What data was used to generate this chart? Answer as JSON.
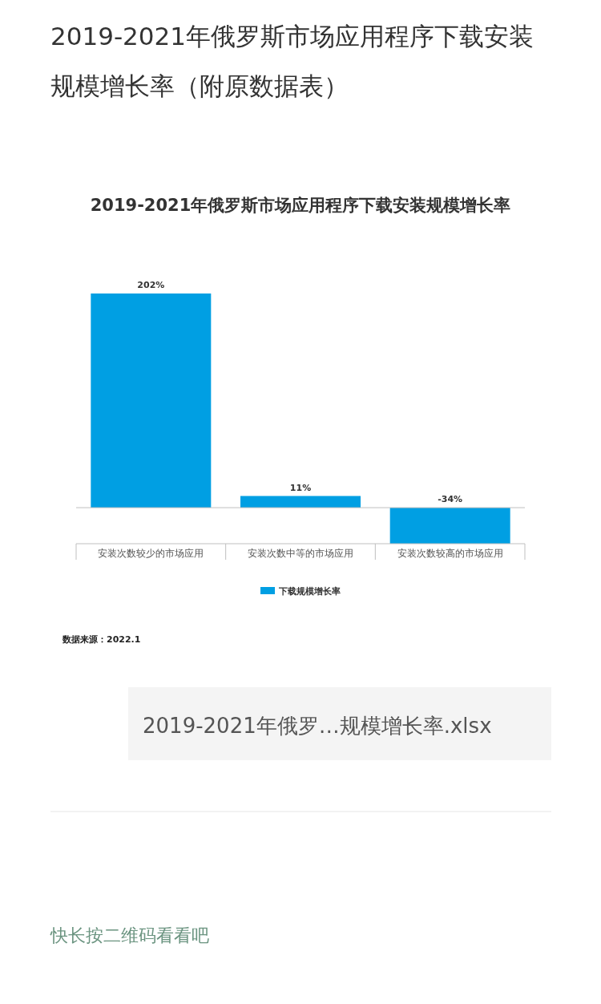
{
  "chart_data": {
    "type": "bar",
    "subtitle": "2019-2021年俄罗斯市场应用程序下载安装规模增长率（附原数据表）",
    "title": "2019-2021年俄罗斯市场应用程序下载安装规模增长率",
    "categories": [
      "安装次数较少的市场应用",
      "安装次数中等的市场应用",
      "安装次数较高的市场应用"
    ],
    "series": [
      {
        "name": "下载规模增长率",
        "color": "#009fe3",
        "values": [
          202,
          11,
          -34
        ],
        "value_labels": [
          "202%",
          "11%",
          "-34%"
        ]
      }
    ],
    "legend": "bottom",
    "annotations": [
      "数据来源：2022.1",
      "2019-2021年俄罗…规模增长率.xlsx",
      "快长按二维码看看吧"
    ]
  }
}
